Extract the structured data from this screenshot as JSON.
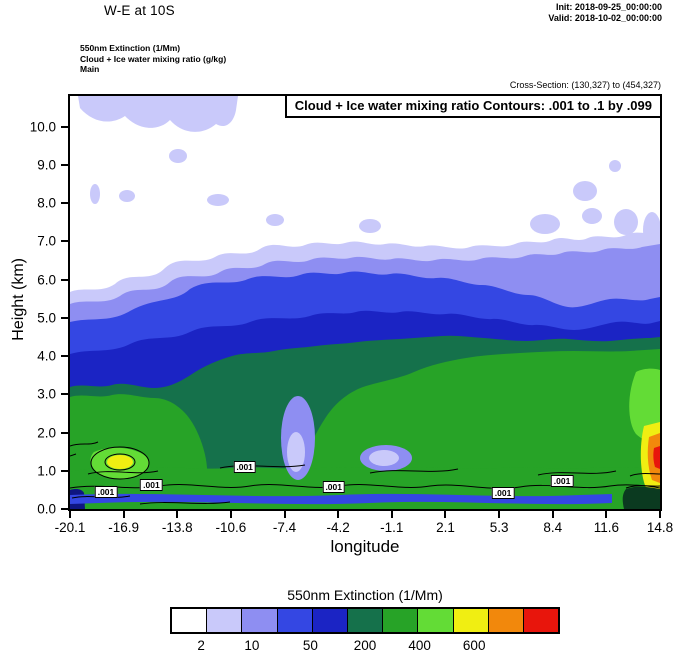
{
  "header": {
    "title": "W-E at 10S",
    "init_line": "Init: 2018-09-25_00:00:00",
    "valid_line": "Valid: 2018-10-02_00:00:00",
    "field_line_1": "550nm Extinction (1/Mm)",
    "field_line_2": "Cloud + Ice water mixing ratio (g/kg)",
    "field_line_3": "Main",
    "cross_section": "Cross-Section: (130,327) to (454,327)"
  },
  "chart_data": {
    "type": "heatmap",
    "subtype": "filled contour vertical cross-section (W-E at 10S)",
    "title": "Cloud + Ice water mixing ratio Contours: .001 to .1 by .099",
    "xlabel": "longitude",
    "ylabel": "Height (km)",
    "xlim": [
      -20.1,
      14.8
    ],
    "ylim": [
      0.0,
      10.8
    ],
    "grid": false,
    "x_ticks": [
      "-20.1",
      "-16.9",
      "-13.8",
      "-10.6",
      "-7.4",
      "-4.2",
      "-1.1",
      "2.1",
      "5.3",
      "8.4",
      "11.6",
      "14.8"
    ],
    "y_ticks": [
      "0.0",
      "1.0",
      "2.0",
      "3.0",
      "4.0",
      "5.0",
      "6.0",
      "7.0",
      "8.0",
      "9.0",
      "10.0"
    ],
    "fill_field": "550nm Extinction (1/Mm)",
    "overlay_field": "Cloud + Ice water mixing ratio (g/kg), line contours .001 to .1 by .099",
    "colorbar": {
      "title": "550nm Extinction  (1/Mm)",
      "position": "bottom",
      "colors": [
        "#ffffff",
        "#c9c9fa",
        "#8e8ef2",
        "#3447e3",
        "#1b24c4",
        "#15714b",
        "#27a327",
        "#63dc36",
        "#f0ee12",
        "#f2880c",
        "#e8150c"
      ],
      "tick_labels": [
        "2",
        "10",
        "50",
        "200",
        "400",
        "600"
      ],
      "tick_positions_pct": [
        8,
        21,
        36,
        50,
        64,
        78
      ]
    },
    "contour_labels": [
      {
        "label": ".001",
        "x_pct": 6.1,
        "y_pct": 95.8
      },
      {
        "label": ".001",
        "x_pct": 13.8,
        "y_pct": 94.1
      },
      {
        "label": ".001",
        "x_pct": 29.6,
        "y_pct": 89.9
      },
      {
        "label": ".001",
        "x_pct": 44.7,
        "y_pct": 94.6
      },
      {
        "label": ".001",
        "x_pct": 73.4,
        "y_pct": 96.2
      },
      {
        "label": ".001",
        "x_pct": 83.4,
        "y_pct": 93.1
      }
    ],
    "features": {
      "aerosol_layer_top": {
        "description": "approximate top height (km) of extinction > 2 1/Mm layer at each longitude tick",
        "lon": [
          -20.1,
          -16.9,
          -13.8,
          -10.6,
          -7.4,
          -4.2,
          -1.1,
          2.1,
          5.3,
          8.4,
          11.6,
          14.8
        ],
        "top_km": [
          6.4,
          6.6,
          7.0,
          6.8,
          7.4,
          7.0,
          6.4,
          6.3,
          6.9,
          7.3,
          7.0,
          7.6
        ]
      },
      "main_extinction_band_km": [
        0.3,
        4.5
      ],
      "green_core": "extinction 200-400 1/Mm from ~1-4.2 km between lon -6 and 14.8 and ~0.4-3 km between lon -20 and -13",
      "maxima": "extinction >400-600 1/Mm in shallow layer ~0.8-2.2 km near lon -17 (yellow) and at right edge lon 14.4-14.8 (yellow/orange/red)",
      "upper_patches": "scattered 2-10 1/Mm lavender patches 7.5-10.8 km, incl. deck near 10.5 km between lon -19 and -11",
      "low_level_gaps": "light (2-50 1/Mm) intrusions near lon -7 (0.8-2.9 km) and lon -1.5 (~1-1.6 km)"
    }
  }
}
